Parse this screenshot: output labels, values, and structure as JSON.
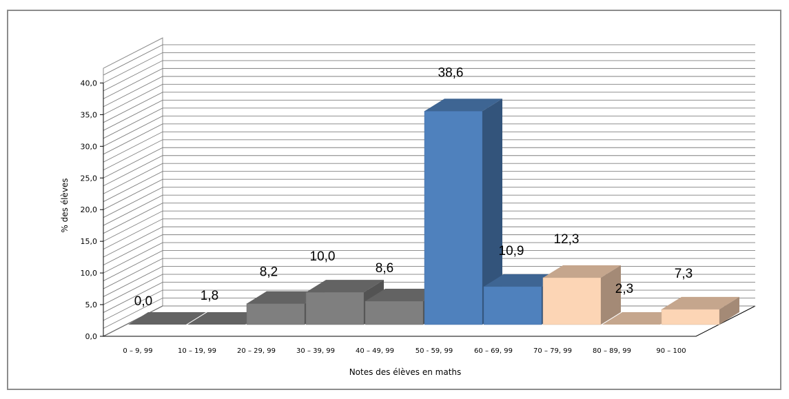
{
  "chart_data": {
    "type": "bar",
    "title": "",
    "xlabel": "Notes des élèves en maths",
    "ylabel": "% des élèves",
    "ylim": [
      0,
      40
    ],
    "yticks": [
      "0,0",
      "5,0",
      "10,0",
      "15,0",
      "20,0",
      "25,0",
      "30,0",
      "35,0",
      "40,0"
    ],
    "categories": [
      "0 – 9, 99",
      "10 – 19, 99",
      "20 – 29, 99",
      "30 – 39, 99",
      "40 – 49, 99",
      "50 - 59, 99",
      "60 – 69, 99",
      "70 – 79, 99",
      "80 – 89, 99",
      "90 – 100"
    ],
    "values": [
      0.0,
      1.8,
      8.2,
      10.0,
      8.6,
      38.6,
      10.9,
      12.3,
      2.3,
      7.3
    ],
    "value_labels": [
      "0,0",
      "1,8",
      "8,2",
      "10,0",
      "8,6",
      "38,6",
      "10,9",
      "12,3",
      "2,3",
      "7,3"
    ],
    "bar_colors": [
      "#7f7f7f",
      "#7f7f7f",
      "#7f7f7f",
      "#7f7f7f",
      "#7f7f7f",
      "#4f81bd",
      "#4f81bd",
      "#fcd5b5",
      "#fcd5b5",
      "#fcd5b5"
    ],
    "style": "3d-column",
    "grid": true,
    "legend": "none"
  }
}
